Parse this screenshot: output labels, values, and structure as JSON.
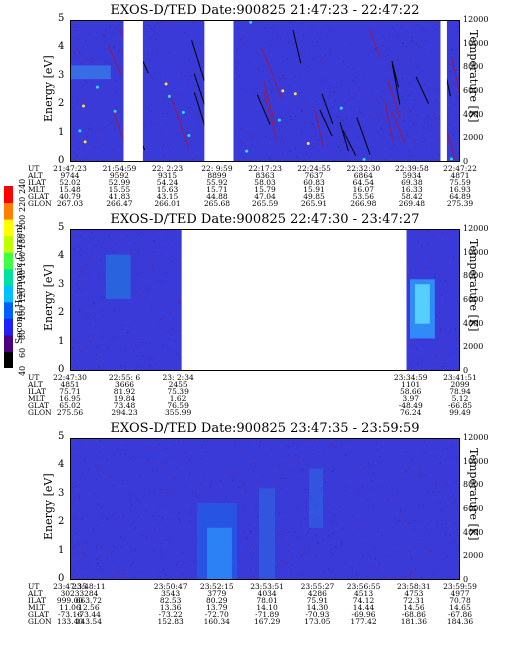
{
  "colorbar": {
    "label": "Second Harmonic Current",
    "ticks": [
      "40",
      "60",
      "80",
      "100",
      "120",
      "140",
      "160",
      "180",
      "200",
      "220",
      "240"
    ],
    "colors": [
      "#000000",
      "#4a0080",
      "#2020ff",
      "#0060ff",
      "#00c0ff",
      "#00e0a0",
      "#40ff40",
      "#c0ff00",
      "#ffff00",
      "#ff8000",
      "#ff0000"
    ]
  },
  "panels": [
    {
      "title": "EXOS-D/TED   Date:900825  21:47:23 - 22:47:22",
      "ylabel": "Energy [eV]",
      "y2label": "Temperature [K]",
      "yticks": [
        "0",
        "1",
        "2",
        "3",
        "4",
        "5"
      ],
      "y2ticks": [
        "0",
        "2000",
        "4000",
        "6000",
        "8000",
        "10000",
        "12000"
      ],
      "table": {
        "labels": [
          "UT",
          "ALT",
          "ILAT",
          "MLT",
          "GLAT",
          "GLON"
        ],
        "columns": [
          [
            "21:47:23",
            "9744",
            "52.02",
            "15.48",
            "40.79",
            "267.03"
          ],
          [
            "21:54:59",
            "9592",
            "52.99",
            "15.55",
            "41.83",
            "266.47"
          ],
          [
            "22: 2:23",
            "9315",
            "54.24",
            "15.63",
            "43.15",
            "266.01"
          ],
          [
            "22: 9:59",
            "8899",
            "55.92",
            "15.71",
            "44.88",
            "265.68"
          ],
          [
            "22:17:23",
            "8363",
            "58.03",
            "15.79",
            "47.04",
            "265.59"
          ],
          [
            "22:24:55",
            "7637",
            "60.83",
            "15.91",
            "49.85",
            "265.91"
          ],
          [
            "22:32:30",
            "6864",
            "64.54",
            "16.07",
            "53.56",
            "266.98"
          ],
          [
            "22:39:58",
            "5934",
            "69.38",
            "16.33",
            "58.42",
            "269.48"
          ],
          [
            "22:47:22",
            "4871",
            "75.59",
            "16.93",
            "64.89",
            "275.39"
          ]
        ]
      }
    },
    {
      "title": "EXOS-D/TED   Date:900825  22:47:30 - 23:47:27",
      "ylabel": "Energy [eV]",
      "y2label": "Temperature [K]",
      "yticks": [
        "0",
        "1",
        "2",
        "3",
        "4",
        "5"
      ],
      "y2ticks": [
        "0",
        "2000",
        "4000",
        "6000",
        "8000",
        "10000",
        "12000"
      ],
      "table": {
        "labels": [
          "UT",
          "ALT",
          "ILAT",
          "MLT",
          "GLAT",
          "GLON"
        ],
        "columns": [
          [
            "22:47:30",
            "4851",
            "75.71",
            "16.95",
            "65.02",
            "275.56"
          ],
          [
            "22:55: 6",
            "3666",
            "81.92",
            "19.84",
            "73.48",
            "294.23"
          ],
          [
            "23: 2:34",
            "2455",
            "75.39",
            "1.62",
            "76.59",
            "355.99"
          ],
          [
            "23:34:59",
            "1101",
            "58.66",
            "3.97",
            "-48.49",
            "76.24"
          ],
          [
            "23:41:51",
            "2099",
            "78.94",
            "5.12",
            "-66.85",
            "99.49"
          ]
        ]
      }
    },
    {
      "title": "EXOS-D/TED   Date:900825  23:47:35 - 23:59:59",
      "ylabel": "Energy [eV]",
      "y2label": "Temperature [K]",
      "yticks": [
        "0",
        "1",
        "2",
        "3",
        "4",
        "5"
      ],
      "y2ticks": [
        "0",
        "2000",
        "4000",
        "6000",
        "8000",
        "10000",
        "12000"
      ],
      "table": {
        "labels": [
          "UT",
          "ALT",
          "ILAT",
          "MLT",
          "GLAT",
          "GLON"
        ],
        "columns": [
          [
            "23:47:35",
            "3023",
            "999.00",
            "11.06",
            "-73.16",
            "133.40"
          ],
          [
            "23:48:11",
            "3284",
            "663.72",
            "12.56",
            "-73.44",
            "143.54"
          ],
          [
            "23:50:47",
            "3543",
            "82.53",
            "13.36",
            "-73.22",
            "152.83"
          ],
          [
            "23:52:15",
            "3779",
            "80.29",
            "13.79",
            "-72.70",
            "160.34"
          ],
          [
            "23:53:51",
            "4034",
            "78.01",
            "14.10",
            "-71.89",
            "167.29"
          ],
          [
            "23:55:27",
            "4286",
            "75.91",
            "14.30",
            "-70.93",
            "173.05"
          ],
          [
            "23:56:55",
            "4513",
            "74.12",
            "14.44",
            "-69.96",
            "177.42"
          ],
          [
            "23:58:31",
            "4753",
            "72.31",
            "14.56",
            "-68.86",
            "181.36"
          ],
          [
            "23:59:59",
            "4977",
            "70.78",
            "14.65",
            "-67.86",
            "184.36"
          ]
        ]
      }
    }
  ],
  "chart_data": [
    {
      "type": "heatmap",
      "title": "EXOS-D/TED   Date:900825  21:47:23 - 22:47:22",
      "ylabel": "Energy [eV]",
      "y2label": "Temperature [K]",
      "ylim": [
        0,
        5
      ],
      "y2lim": [
        0,
        12000
      ],
      "x_ticks": [
        "21:47:23",
        "21:54:59",
        "22: 2:23",
        "22: 9:59",
        "22:17:23",
        "22:24:55",
        "22:32:30",
        "22:39:58",
        "22:47:22"
      ],
      "data_gaps_ut": [
        [
          "21:55:30",
          "21:58:30"
        ],
        [
          "22:08:00",
          "22:12:30"
        ],
        [
          "22:44:30",
          "22:45:30"
        ]
      ]
    },
    {
      "type": "heatmap",
      "title": "EXOS-D/TED   Date:900825  22:47:30 - 23:47:27",
      "ylabel": "Energy [eV]",
      "y2label": "Temperature [K]",
      "ylim": [
        0,
        5
      ],
      "y2lim": [
        0,
        12000
      ],
      "x_ticks": [
        "22:47:30",
        "22:55: 6",
        "23: 2:34",
        "23:34:59",
        "23:41:51"
      ],
      "data_gaps_ut": [
        [
          "23:03:00",
          "23:34:30"
        ]
      ]
    },
    {
      "type": "heatmap",
      "title": "EXOS-D/TED   Date:900825  23:47:35 - 23:59:59",
      "ylabel": "Energy [eV]",
      "y2label": "Temperature [K]",
      "ylim": [
        0,
        5
      ],
      "y2lim": [
        0,
        12000
      ],
      "x_ticks": [
        "23:47:35",
        "23:48:11",
        "23:50:47",
        "23:52:15",
        "23:53:51",
        "23:55:27",
        "23:56:55",
        "23:58:31",
        "23:59:59"
      ]
    }
  ]
}
